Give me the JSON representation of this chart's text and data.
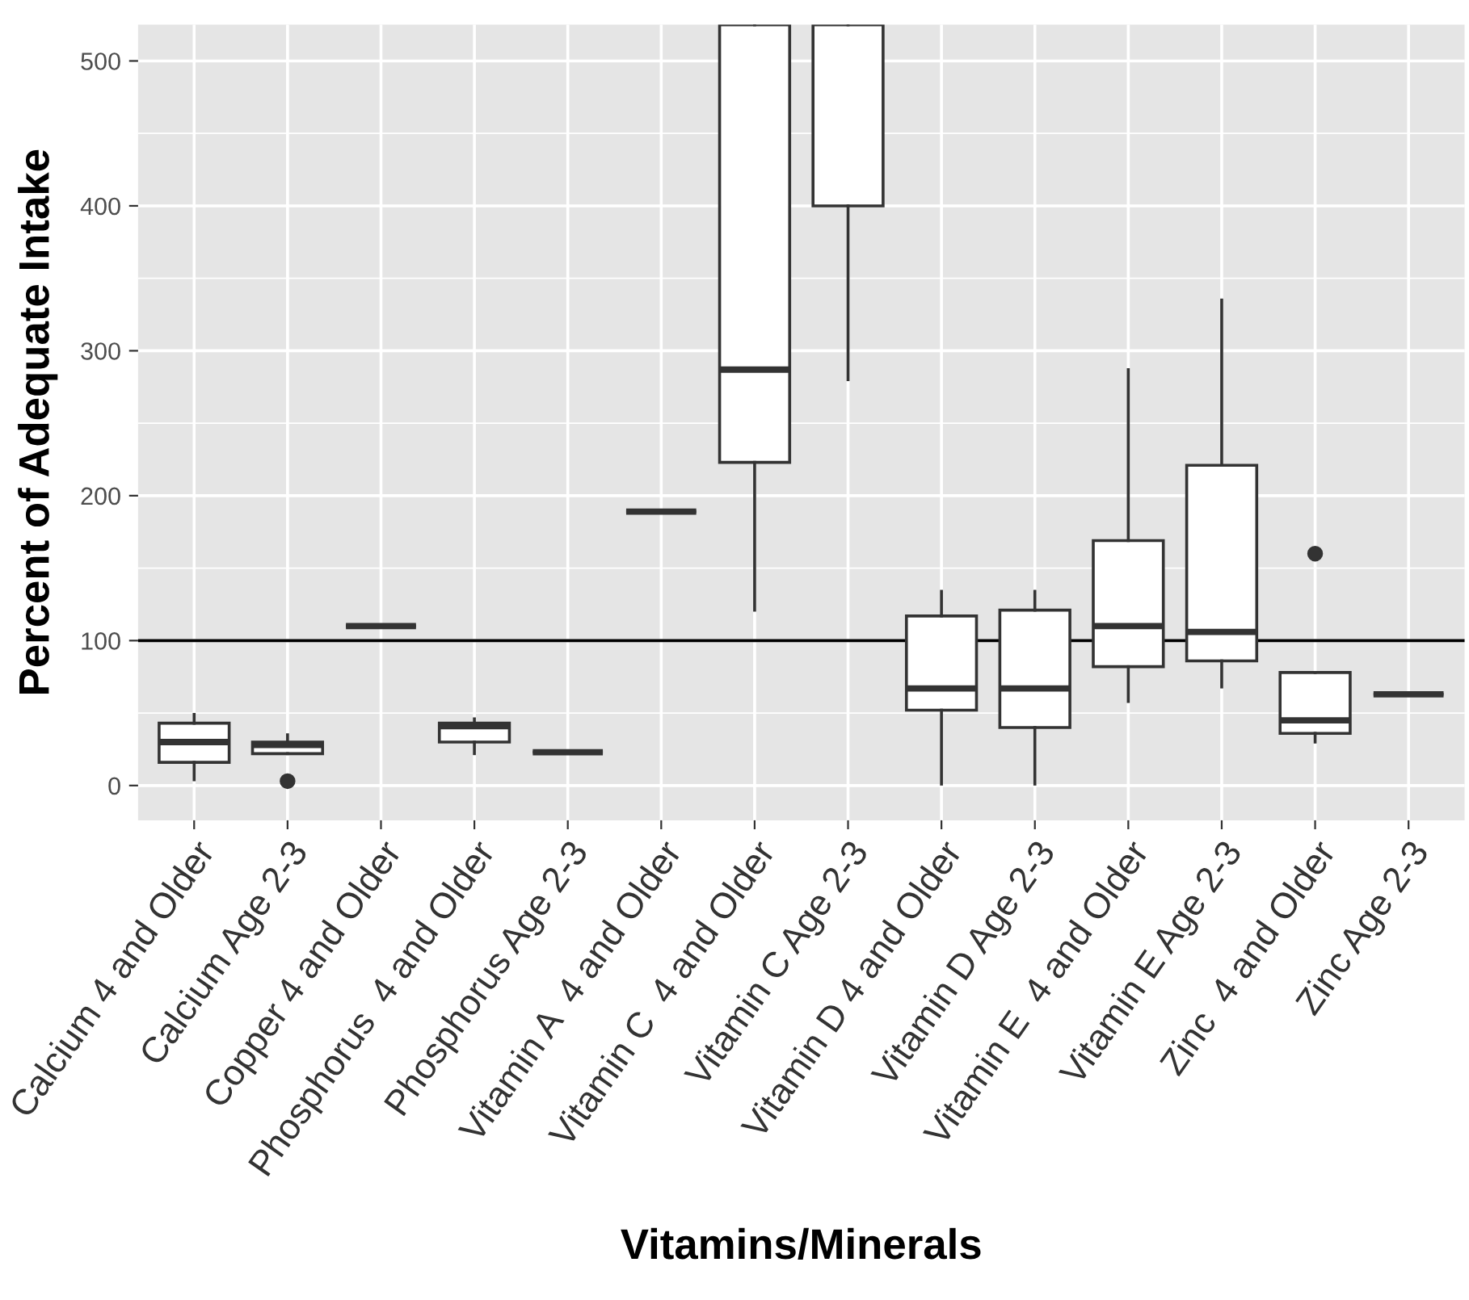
{
  "chart_data": {
    "type": "box",
    "xlabel": "Vitamins/Minerals",
    "ylabel": "Percent of Adequate Intake",
    "categories": [
      "Calcium 4 and Older",
      "Calcium Age 2-3",
      "Copper 4 and Older",
      "Phosphorus  4 and Older",
      "Phosphorus Age 2-3",
      "Vitamin A  4 and Older",
      "Vitamin C  4 and Older",
      "Vitamin C Age 2-3",
      "Vitamin D 4 and Older",
      "Vitamin D Age 2-3",
      "Vitamin E  4 and Older",
      "Vitamin E Age 2-3",
      "Zinc  4 and Older",
      "Zinc Age 2-3"
    ],
    "boxes": [
      {
        "low": 4,
        "q1": 16,
        "median": 30,
        "q3": 43,
        "high": 49
      },
      {
        "low": 22,
        "q1": 22,
        "median": 28,
        "q3": 30,
        "high": 35,
        "outliers": [
          3
        ]
      },
      {
        "low": 110,
        "q1": 110,
        "median": 110,
        "q3": 110,
        "high": 110
      },
      {
        "low": 22,
        "q1": 30,
        "median": 41,
        "q3": 43,
        "high": 46
      },
      {
        "low": 23,
        "q1": 23,
        "median": 23,
        "q3": 23,
        "high": 23
      },
      {
        "low": 189,
        "q1": 189,
        "median": 189,
        "q3": 189,
        "high": 189
      },
      {
        "low": 121,
        "q1": 223,
        "median": 287,
        "q3": 525,
        "high": 525
      },
      {
        "low": 280,
        "q1": 400,
        "median": null,
        "q3": 525,
        "high": 525
      },
      {
        "low": 1,
        "q1": 52,
        "median": 67,
        "q3": 117,
        "high": 134
      },
      {
        "low": 1,
        "q1": 40,
        "median": 67,
        "q3": 121,
        "high": 134
      },
      {
        "low": 58,
        "q1": 82,
        "median": 110,
        "q3": 169,
        "high": 287
      },
      {
        "low": 68,
        "q1": 86,
        "median": 106,
        "q3": 221,
        "high": 335
      },
      {
        "low": 30,
        "q1": 36,
        "median": 45,
        "q3": 78,
        "high": 78,
        "outliers": [
          160
        ]
      },
      {
        "low": 63,
        "q1": 63,
        "median": 63,
        "q3": 63,
        "high": 63
      }
    ],
    "ylim": [
      -24,
      525
    ],
    "yticks": [
      0,
      100,
      200,
      300,
      400,
      500
    ],
    "grid": true,
    "ref_lines": [
      {
        "axis": "y",
        "value": 100,
        "color": "#000000"
      }
    ]
  }
}
